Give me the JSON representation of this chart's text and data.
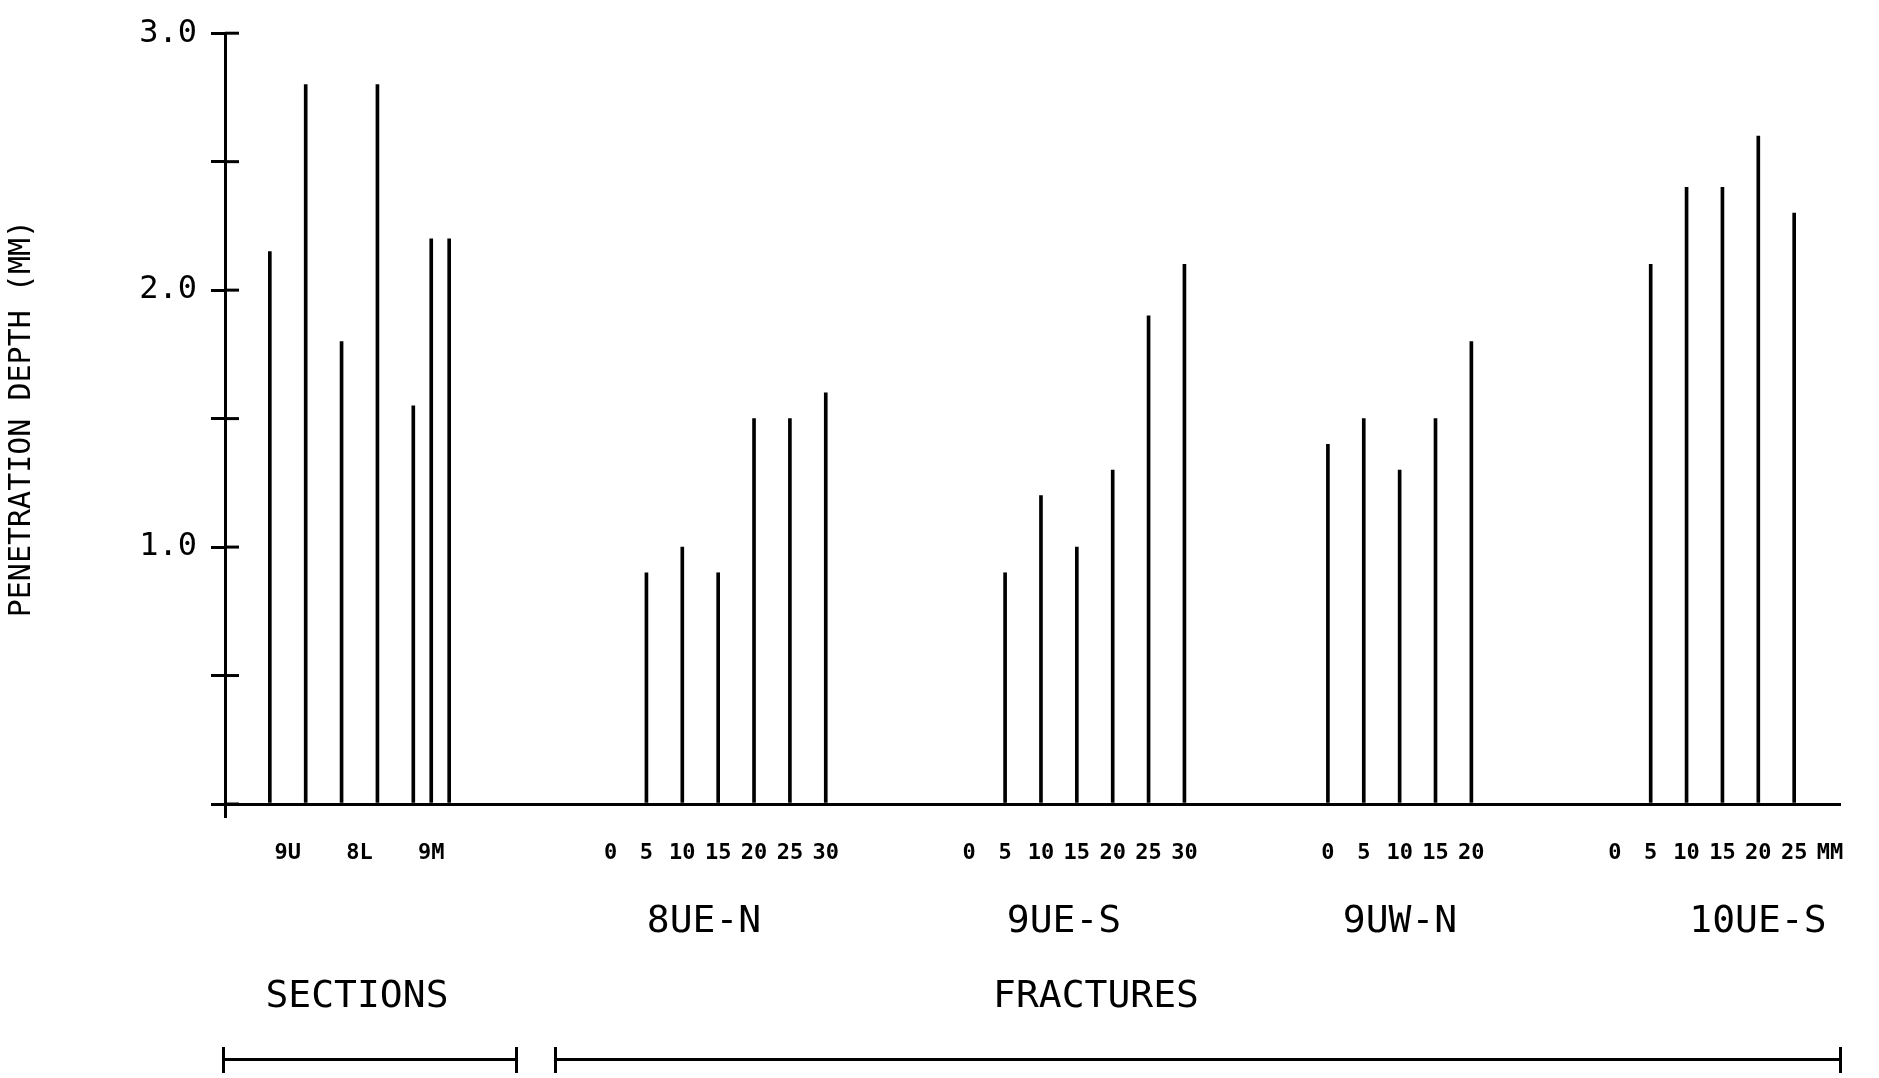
{
  "chart_data": {
    "type": "bar",
    "ylabel": "PENETRATION DEPTH (MM)",
    "color": "#000000",
    "categories": [
      null,
      null,
      null,
      "9U",
      null,
      null,
      null,
      "8L",
      null,
      null,
      null,
      "9M",
      null,
      null,
      null,
      null,
      null,
      null,
      null,
      null,
      null,
      "0",
      null,
      "5",
      null,
      "10",
      null,
      "15",
      null,
      "20",
      null,
      "25",
      null,
      "30",
      null,
      null,
      null,
      null,
      null,
      null,
      null,
      "0",
      null,
      "5",
      null,
      "10",
      null,
      "15",
      null,
      "20",
      null,
      "25",
      null,
      "30",
      null,
      null,
      null,
      null,
      null,
      null,
      null,
      "0",
      null,
      "5",
      null,
      "10",
      null,
      "15",
      null,
      "20",
      null,
      null,
      null,
      null,
      null,
      null,
      null,
      "0",
      null,
      "5",
      null,
      "10",
      null,
      "15",
      null,
      "20",
      null,
      "25",
      null,
      "MM"
    ],
    "values": [
      null,
      null,
      2.15,
      null,
      2.8,
      null,
      1.8,
      null,
      2.8,
      null,
      1.55,
      2.2,
      2.2,
      null,
      null,
      null,
      null,
      null,
      null,
      null,
      null,
      null,
      null,
      0.9,
      null,
      1.0,
      null,
      0.9,
      null,
      1.5,
      null,
      1.5,
      null,
      1.6,
      null,
      null,
      null,
      null,
      null,
      null,
      null,
      null,
      null,
      0.9,
      null,
      1.2,
      null,
      1.0,
      null,
      1.3,
      null,
      1.9,
      null,
      2.1,
      null,
      null,
      null,
      null,
      null,
      null,
      null,
      1.4,
      null,
      1.5,
      null,
      1.3,
      null,
      1.5,
      null,
      1.8,
      null,
      null,
      null,
      null,
      null,
      null,
      null,
      null,
      null,
      2.1,
      null,
      2.4,
      null,
      2.4,
      null,
      2.6,
      null,
      2.3,
      null,
      null
    ],
    "ylim": [
      0,
      3
    ],
    "yticks": [
      {
        "value": 0,
        "label": null
      },
      {
        "value": 0.5,
        "label": null
      },
      {
        "value": 1,
        "label": "1.0"
      },
      {
        "value": 1.5,
        "label": null
      },
      {
        "value": 2,
        "label": "2.0"
      },
      {
        "value": 2.5,
        "label": null
      },
      {
        "value": 3,
        "label": "3.0"
      }
    ],
    "annotations": [
      "8UE-N",
      "9UE-S",
      "9UW-N",
      "10UE-S",
      "SECTIONS",
      "FRACTURES"
    ]
  }
}
